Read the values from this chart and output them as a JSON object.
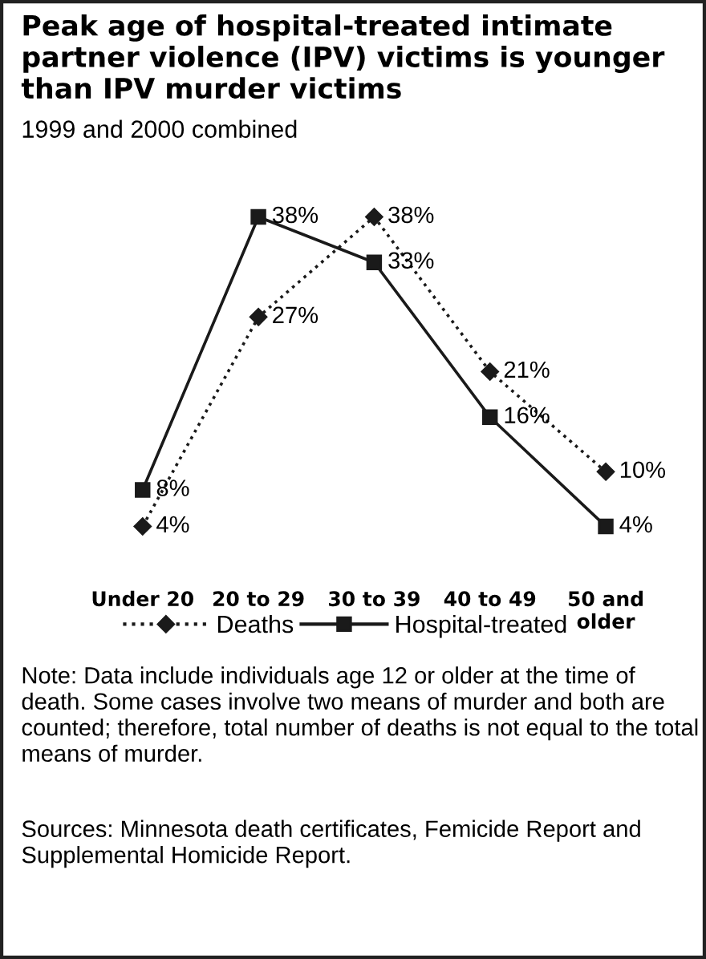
{
  "chart_data": {
    "type": "line",
    "title": "Peak age of hospital-treated intimate partner violence (IPV) victims is younger than IPV murder victims",
    "subtitle": "1999 and 2000 combined",
    "categories": [
      "Under 20",
      "20 to 29",
      "30 to 39",
      "40 to 49",
      "50 and\nolder"
    ],
    "series": [
      {
        "name": "Deaths",
        "color": "#1a1a1a",
        "values": [
          4,
          27,
          38,
          21,
          10
        ],
        "value_labels": [
          "4%",
          "27%",
          "38%",
          "21%",
          "10%"
        ],
        "marker": "diamond",
        "line_style": "dotted"
      },
      {
        "name": "Hospital-treated",
        "color": "#1a1a1a",
        "values": [
          8,
          38,
          33,
          16,
          4
        ],
        "value_labels": [
          "8%",
          "38%",
          "33%",
          "16%",
          "4%"
        ],
        "marker": "square",
        "line_style": "solid"
      }
    ],
    "legend": "bottom",
    "grid": false,
    "tick_labels": "x",
    "annotations": [
      "Note: Data include individuals age 12 or older at the time of death. Some cases involve two means of murder and both are counted; therefore, total number of deaths is not equal to the total means of murder.",
      "Sources: Minnesota death certificates, Femicide Report and Supplemental Homicide Report."
    ]
  }
}
